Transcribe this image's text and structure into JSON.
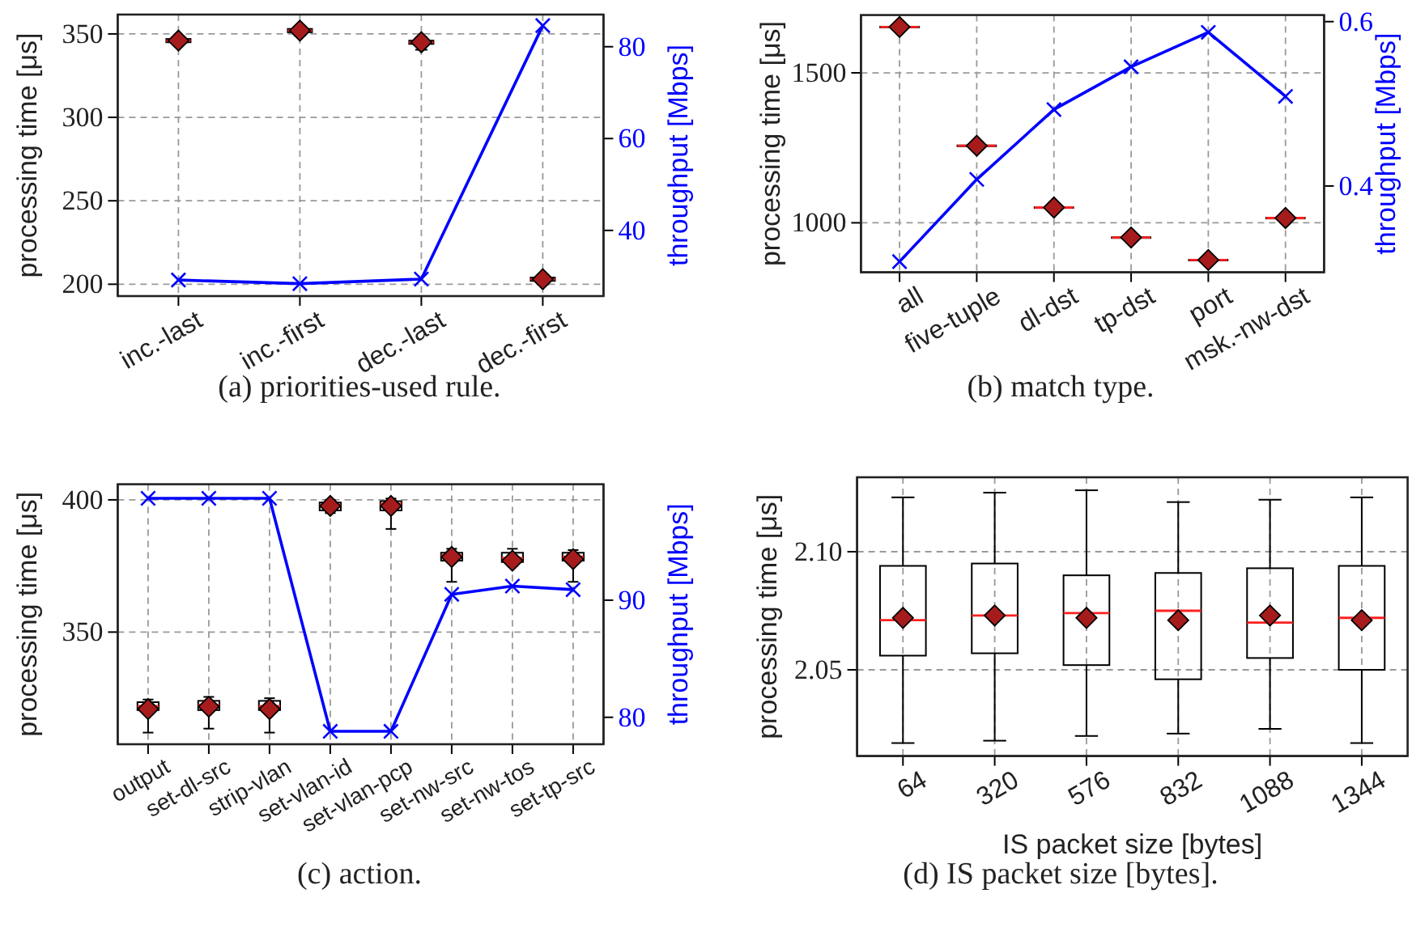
{
  "chart_data": [
    {
      "type": "box",
      "categories": [
        "inc.-last",
        "inc.-first",
        "dec.-last",
        "dec.-first"
      ],
      "ylabel": "processing time [μs]",
      "y2label": "throughput [Mbps]",
      "ylim": [
        192.9,
        361.6
      ],
      "yticks": [
        200,
        250,
        300,
        350
      ],
      "y2lim": [
        25.7,
        87.0
      ],
      "y2ticks": [
        40,
        60,
        80
      ],
      "grid": true,
      "annotations": [
        "(a) priorities-used rule."
      ],
      "boxes": [
        {
          "low": 344,
          "q1": 345,
          "median": 346,
          "q3": 347,
          "high": 348
        },
        {
          "low": 349,
          "q1": 351,
          "median": 352,
          "q3": 353,
          "high": 354
        },
        {
          "low": 340.5,
          "q1": 344,
          "median": 345,
          "q3": 346,
          "high": 348
        },
        {
          "low": 200,
          "q1": 202,
          "median": 203,
          "q3": 204,
          "high": 205
        }
      ],
      "series": [
        {
          "type": "scatter",
          "color": "#a61c1c",
          "marker": "diamond",
          "values": [
            346,
            352,
            345,
            203
          ]
        },
        {
          "type": "line",
          "axis": "y2",
          "color": "#0000ff",
          "marker": "cross",
          "values": [
            29.2,
            28.4,
            29.4,
            84.6
          ]
        }
      ]
    },
    {
      "type": "box",
      "categories": [
        "all",
        "five-tuple",
        "dl-dst",
        "tp-dst",
        "port",
        "msk.-nw-dst"
      ],
      "ylabel": "processing time [μs]",
      "y2label": "throughput [Mbps]",
      "ylim": [
        835,
        1692.7
      ],
      "yticks": [
        1000,
        1500
      ],
      "y2lim": [
        0.295,
        0.608
      ],
      "y2ticks": [
        0.4,
        0.6
      ],
      "grid": true,
      "annotations": [
        "(b) match type."
      ],
      "boxes": [
        {
          "low": 1651,
          "q1": 1652,
          "median": 1653,
          "q3": 1654,
          "high": 1655
        },
        {
          "low": 1255,
          "q1": 1256,
          "median": 1257,
          "q3": 1258,
          "high": 1259
        },
        {
          "low": 1049,
          "q1": 1050,
          "median": 1051,
          "q3": 1052,
          "high": 1053
        },
        {
          "low": 949,
          "q1": 950,
          "median": 951,
          "q3": 952,
          "high": 953
        },
        {
          "low": 874,
          "q1": 875,
          "median": 876,
          "q3": 877,
          "high": 878
        },
        {
          "low": 1014,
          "q1": 1015,
          "median": 1016,
          "q3": 1017,
          "high": 1018
        }
      ],
      "series": [
        {
          "type": "scatter",
          "color": "#a61c1c",
          "marker": "diamond",
          "values": [
            1653,
            1257,
            1051,
            951,
            876,
            1016
          ]
        },
        {
          "type": "line",
          "axis": "y2",
          "color": "#0000ff",
          "marker": "cross",
          "values": [
            0.308,
            0.408,
            0.493,
            0.545,
            0.587,
            0.509
          ]
        }
      ]
    },
    {
      "type": "box",
      "categories": [
        "output",
        "set-dl-src",
        "strip-vlan",
        "set-vlan-id",
        "set-vlan-pcp",
        "set-nw-src",
        "set-nw-tos",
        "set-tp-src"
      ],
      "ylabel": "processing time [μs]",
      "y2label": "throughput [Mbps]",
      "ylim": [
        307.6,
        405.9
      ],
      "yticks": [
        350,
        400
      ],
      "y2lim": [
        77.7,
        99.9
      ],
      "y2ticks": [
        80,
        90
      ],
      "grid": true,
      "annotations": [
        "(c) action."
      ],
      "boxes": [
        {
          "low": 312,
          "q1": 320.5,
          "median": 322,
          "q3": 323.5,
          "high": 324.5
        },
        {
          "low": 313.5,
          "q1": 320.5,
          "median": 322.5,
          "q3": 324,
          "high": 325.5
        },
        {
          "low": 312,
          "q1": 320.5,
          "median": 322,
          "q3": 324,
          "high": 325
        },
        {
          "low": 395,
          "q1": 396,
          "median": 398,
          "q3": 399,
          "high": 400
        },
        {
          "low": 389,
          "q1": 396,
          "median": 398.5,
          "q3": 399.5,
          "high": 400.5
        },
        {
          "low": 369,
          "q1": 377,
          "median": 379,
          "q3": 380,
          "high": 381.5
        },
        {
          "low": 375,
          "q1": 376.5,
          "median": 378,
          "q3": 380,
          "high": 381.5
        },
        {
          "low": 369,
          "q1": 377,
          "median": 378.5,
          "q3": 380,
          "high": 381
        }
      ],
      "series": [
        {
          "type": "scatter",
          "color": "#a61c1c",
          "marker": "diamond",
          "values": [
            320.9,
            321.8,
            320.9,
            397.7,
            397.7,
            378.4,
            377,
            377.6
          ]
        },
        {
          "type": "line",
          "axis": "y2",
          "color": "#0000ff",
          "marker": "cross",
          "values": [
            98.7,
            98.7,
            98.7,
            78.8,
            78.8,
            90.5,
            91.2,
            90.9
          ]
        }
      ]
    },
    {
      "type": "box",
      "categories": [
        "64",
        "320",
        "576",
        "832",
        "1088",
        "1344"
      ],
      "xlabel": "IS packet size [bytes]",
      "ylabel": "processing time [μs]",
      "ylim": [
        2.0135,
        2.1315
      ],
      "yticks": [
        {
          "value": 2.05,
          "label": "2.05"
        },
        {
          "value": 2.1,
          "label": "2.10"
        }
      ],
      "grid": true,
      "annotations": [
        "(d) IS packet size [bytes]."
      ],
      "boxes": [
        {
          "low": 2.019,
          "q1": 2.056,
          "median": 2.071,
          "q3": 2.094,
          "high": 2.123
        },
        {
          "low": 2.02,
          "q1": 2.057,
          "median": 2.073,
          "q3": 2.095,
          "high": 2.125
        },
        {
          "low": 2.022,
          "q1": 2.052,
          "median": 2.074,
          "q3": 2.09,
          "high": 2.126
        },
        {
          "low": 2.023,
          "q1": 2.046,
          "median": 2.075,
          "q3": 2.091,
          "high": 2.121
        },
        {
          "low": 2.025,
          "q1": 2.055,
          "median": 2.07,
          "q3": 2.093,
          "high": 2.122
        },
        {
          "low": 2.019,
          "q1": 2.05,
          "median": 2.072,
          "q3": 2.094,
          "high": 2.123
        }
      ],
      "series": [
        {
          "type": "scatter",
          "color": "#a61c1c",
          "marker": "diamond",
          "values": [
            2.072,
            2.073,
            2.072,
            2.071,
            2.073,
            2.071
          ]
        }
      ]
    }
  ]
}
